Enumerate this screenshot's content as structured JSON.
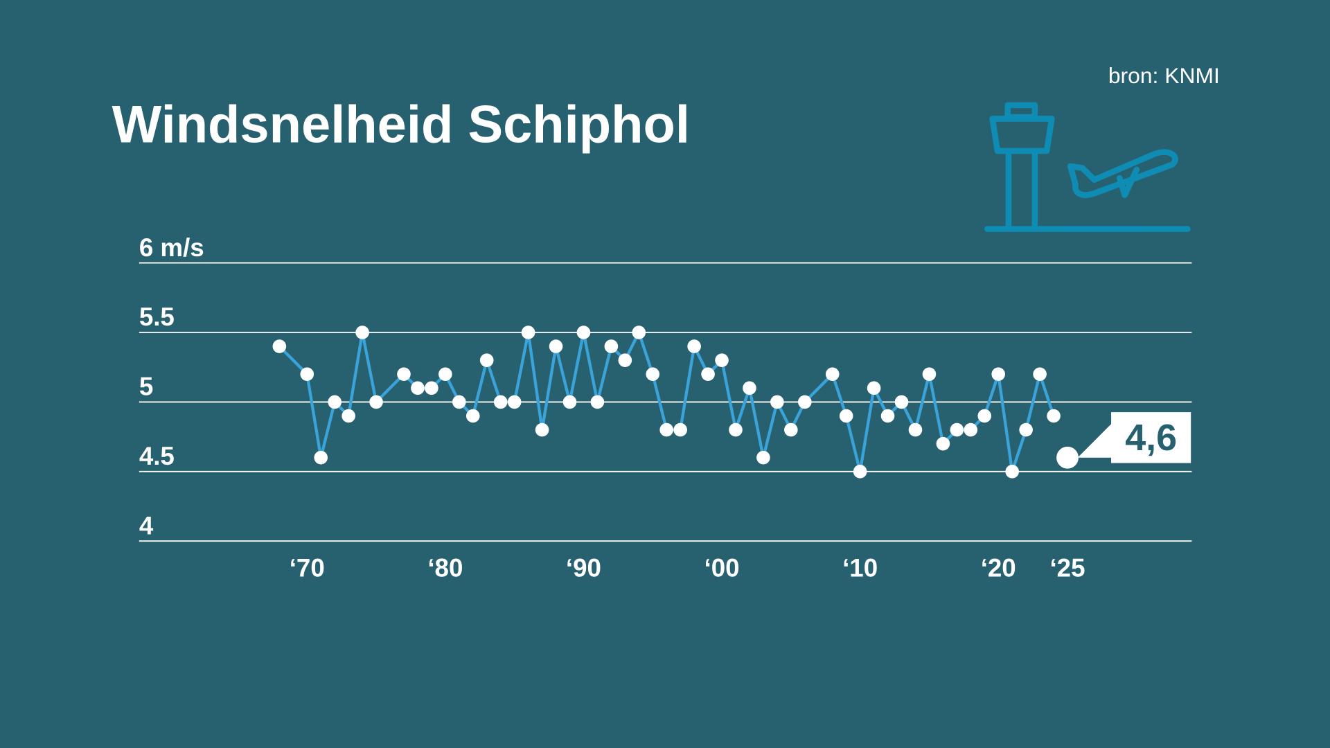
{
  "chart_data": {
    "type": "line",
    "title": "Windsnelheid Schiphol",
    "source": "bron: KNMI",
    "ylabel": "",
    "ylim": [
      4,
      6
    ],
    "y_ticks": [
      {
        "value": 6,
        "label": "6 m/s"
      },
      {
        "value": 5.5,
        "label": "5.5"
      },
      {
        "value": 5,
        "label": "5"
      },
      {
        "value": 4.5,
        "label": "4.5"
      },
      {
        "value": 4,
        "label": "4"
      }
    ],
    "x_ticks": [
      {
        "value": 1970,
        "label": "‘70"
      },
      {
        "value": 1980,
        "label": "‘80"
      },
      {
        "value": 1990,
        "label": "‘90"
      },
      {
        "value": 2000,
        "label": "‘00"
      },
      {
        "value": 2010,
        "label": "‘10"
      },
      {
        "value": 2020,
        "label": "‘20"
      },
      {
        "value": 2025,
        "label": "‘25"
      }
    ],
    "grid": true,
    "x": [
      1968,
      1970,
      1971,
      1972,
      1973,
      1974,
      1975,
      1977,
      1978,
      1979,
      1980,
      1981,
      1982,
      1983,
      1984,
      1985,
      1986,
      1987,
      1988,
      1989,
      1990,
      1991,
      1992,
      1993,
      1994,
      1995,
      1996,
      1997,
      1998,
      1999,
      2000,
      2001,
      2002,
      2003,
      2004,
      2005,
      2006,
      2008,
      2009,
      2010,
      2011,
      2012,
      2013,
      2014,
      2015,
      2016,
      2017,
      2018,
      2019,
      2020,
      2021,
      2022,
      2023,
      2024
    ],
    "values": [
      5.4,
      5.2,
      4.6,
      5.0,
      4.9,
      5.5,
      5.0,
      5.2,
      5.1,
      5.1,
      5.2,
      5.0,
      4.9,
      5.3,
      5.0,
      5.0,
      5.5,
      4.8,
      5.4,
      5.0,
      5.5,
      5.0,
      5.4,
      5.3,
      5.5,
      5.2,
      4.8,
      4.8,
      5.4,
      5.2,
      5.3,
      4.8,
      5.1,
      4.6,
      5.0,
      4.8,
      5.0,
      5.2,
      4.9,
      4.5,
      5.1,
      4.9,
      5.0,
      4.8,
      5.2,
      4.7,
      4.8,
      4.8,
      4.9,
      5.2,
      4.5,
      4.8,
      5.2,
      4.9
    ],
    "highlight": {
      "x": 2025,
      "value": 4.6,
      "label": "4,6"
    },
    "colors": {
      "background": "#27616f",
      "line": "#3aa3d9",
      "points": "#ffffff",
      "icon": "#0e8cb4"
    },
    "icons": [
      "control-tower-icon",
      "airplane-takeoff-icon"
    ]
  }
}
